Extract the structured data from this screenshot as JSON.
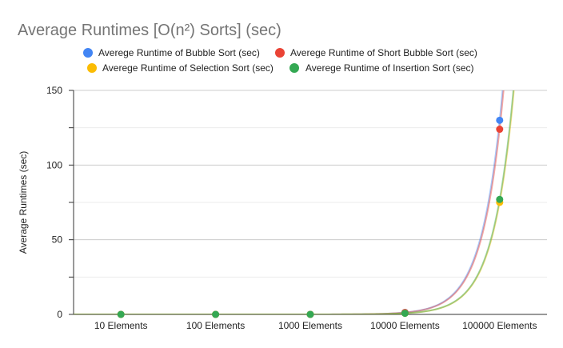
{
  "chart_data": {
    "type": "scatter",
    "title": "Average Runtimes [O(n²) Sorts] (sec)",
    "xlabel": "",
    "ylabel": "Average Runtimes (sec)",
    "categories": [
      "10 Elements",
      "100 Elements",
      "1000 Elements",
      "10000 Elements",
      "100000 Elements"
    ],
    "ylim": [
      0,
      150
    ],
    "yticks": [
      0,
      50,
      100,
      150
    ],
    "ytick_labels": [
      "0",
      "50",
      "100",
      "150"
    ],
    "grid": true,
    "legend_position": "top",
    "trendlines": "exponential",
    "series": [
      {
        "name": "Averege Runtime of Bubble Sort (sec)",
        "color": "#4285f4",
        "values": [
          0,
          0,
          0.01,
          1.3,
          130
        ]
      },
      {
        "name": "Averege Runtime of Short Bubble Sort (sec)",
        "color": "#ea4335",
        "values": [
          0,
          0,
          0.01,
          1.25,
          124
        ]
      },
      {
        "name": "Averege Runtime of Selection Sort (sec)",
        "color": "#fbbc04",
        "values": [
          0,
          0,
          0.01,
          0.75,
          75
        ]
      },
      {
        "name": "Averege Runtime of Insertion Sort (sec)",
        "color": "#34a853",
        "values": [
          0,
          0,
          0.01,
          0.77,
          77
        ]
      }
    ]
  }
}
